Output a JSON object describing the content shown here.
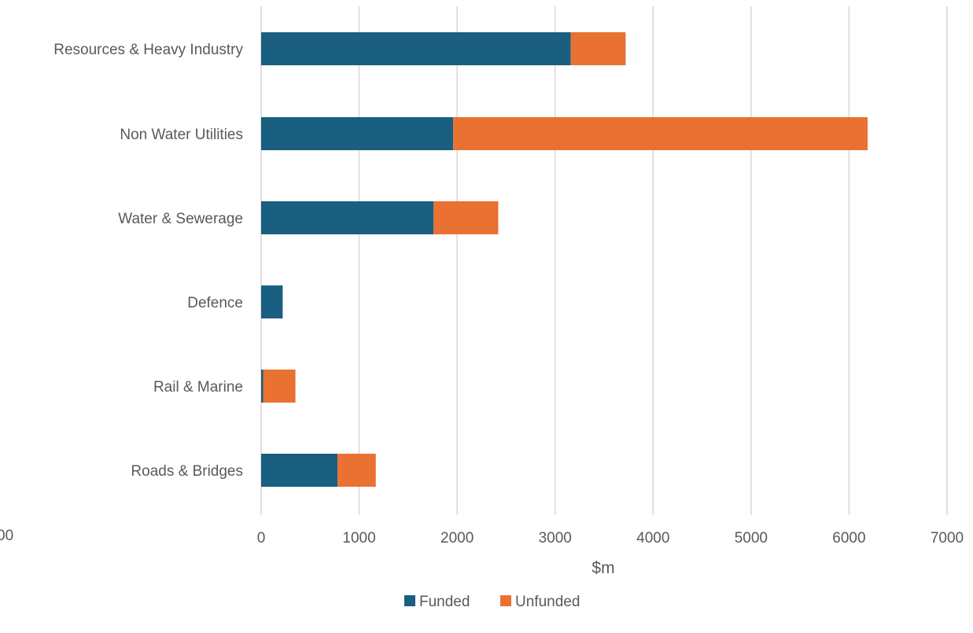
{
  "chart_data": {
    "type": "bar",
    "orientation": "horizontal",
    "stacked": true,
    "categories": [
      "Roads & Bridges",
      "Rail & Marine",
      "Defence",
      "Water & Sewerage",
      "Non Water Utilities",
      "Resources & Heavy Industry"
    ],
    "series": [
      {
        "name": "Funded",
        "color": "#1a5f80",
        "values": [
          780,
          20,
          220,
          1760,
          1960,
          3160
        ]
      },
      {
        "name": "Unfunded",
        "color": "#e97132",
        "values": [
          390,
          330,
          0,
          660,
          4230,
          560
        ]
      }
    ],
    "title": "",
    "xlabel": "$m",
    "ylabel": "",
    "xlim": [
      0,
      7000
    ],
    "xticks": [
      "0",
      "1000",
      "2000",
      "3000",
      "4000",
      "5000",
      "6000",
      "7000"
    ],
    "grid": true,
    "legend_position": "bottom",
    "stray_tick_label": "00"
  }
}
